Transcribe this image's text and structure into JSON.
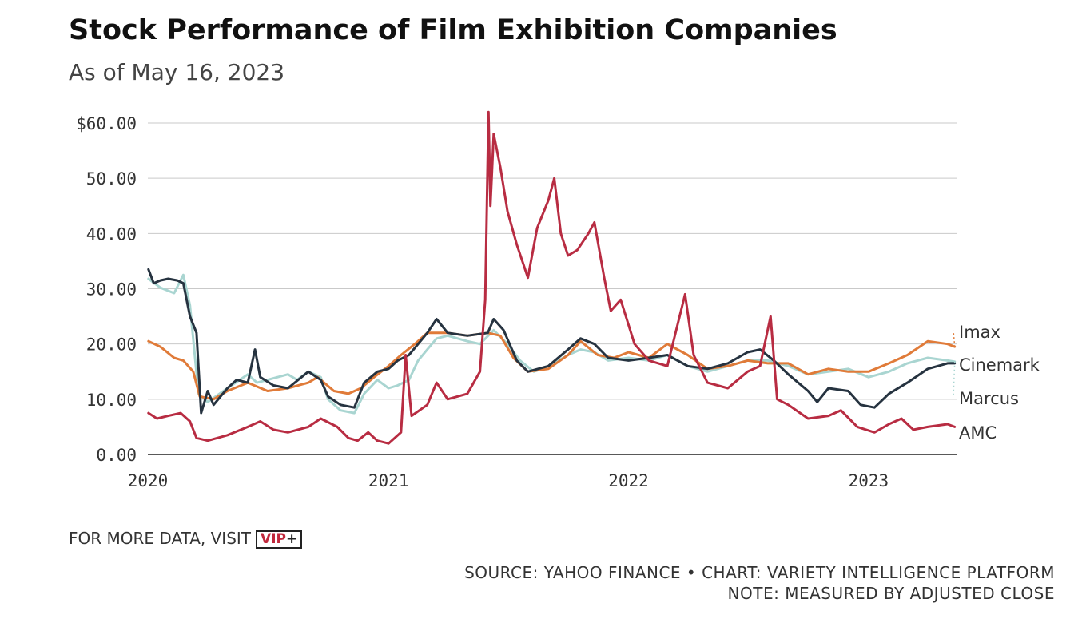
{
  "title": "Stock Performance of Film Exhibition Companies",
  "subtitle": "As of May 16, 2023",
  "footer": {
    "more_data": "FOR MORE DATA, VISIT",
    "vip_label": "VIP",
    "vip_plus": "+",
    "source": "SOURCE: YAHOO FINANCE • CHART: VARIETY INTELLIGENCE PLATFORM",
    "note": "NOTE: MEASURED BY ADJUSTED CLOSE"
  },
  "chart_data": {
    "type": "line",
    "title": "Stock Performance of Film Exhibition Companies",
    "subtitle": "As of May 16, 2023",
    "x_range": [
      "2020-01-01",
      "2023-05-16"
    ],
    "ylim": [
      0,
      60
    ],
    "y_ticks": [
      0,
      10,
      20,
      30,
      40,
      50,
      60
    ],
    "y_tick_labels": [
      "0.00",
      "10.00",
      "20.00",
      "30.00",
      "40.00",
      "50.00",
      "$60.00"
    ],
    "x_ticks": [
      "2020-01-01",
      "2021-01-01",
      "2022-01-01",
      "2023-01-01"
    ],
    "x_tick_labels": [
      "2020",
      "2021",
      "2022",
      "2023"
    ],
    "grid": true,
    "legend": "end-of-line labels",
    "series": [
      {
        "name": "Marcus",
        "color": "#a9d5d1",
        "points": [
          [
            "2020-01-02",
            31.8
          ],
          [
            "2020-01-20",
            30.2
          ],
          [
            "2020-02-10",
            29.2
          ],
          [
            "2020-02-24",
            32.5
          ],
          [
            "2020-03-05",
            27
          ],
          [
            "2020-03-18",
            11
          ],
          [
            "2020-04-01",
            9.5
          ],
          [
            "2020-05-01",
            12
          ],
          [
            "2020-06-01",
            14.5
          ],
          [
            "2020-06-15",
            13
          ],
          [
            "2020-07-01",
            13.5
          ],
          [
            "2020-08-01",
            14.5
          ],
          [
            "2020-08-15",
            13.5
          ],
          [
            "2020-09-01",
            15
          ],
          [
            "2020-09-20",
            14
          ],
          [
            "2020-10-01",
            10
          ],
          [
            "2020-10-20",
            8
          ],
          [
            "2020-11-10",
            7.5
          ],
          [
            "2020-11-25",
            11
          ],
          [
            "2020-12-15",
            13.5
          ],
          [
            "2021-01-01",
            12
          ],
          [
            "2021-01-15",
            12.5
          ],
          [
            "2021-02-01",
            13.5
          ],
          [
            "2021-02-15",
            17
          ],
          [
            "2021-03-01",
            19
          ],
          [
            "2021-03-15",
            21
          ],
          [
            "2021-04-01",
            21.5
          ],
          [
            "2021-05-01",
            20.5
          ],
          [
            "2021-05-20",
            20
          ],
          [
            "2021-06-10",
            22.5
          ],
          [
            "2021-07-01",
            20
          ],
          [
            "2021-07-20",
            17
          ],
          [
            "2021-08-10",
            15
          ],
          [
            "2021-09-01",
            16
          ],
          [
            "2021-10-01",
            18
          ],
          [
            "2021-10-20",
            19
          ],
          [
            "2021-11-10",
            18.5
          ],
          [
            "2021-12-01",
            17
          ],
          [
            "2022-01-01",
            17.5
          ],
          [
            "2022-02-01",
            17
          ],
          [
            "2022-03-01",
            18
          ],
          [
            "2022-04-01",
            16
          ],
          [
            "2022-05-01",
            15
          ],
          [
            "2022-06-01",
            16
          ],
          [
            "2022-07-01",
            17
          ],
          [
            "2022-08-01",
            17
          ],
          [
            "2022-09-01",
            16
          ],
          [
            "2022-10-01",
            14.5
          ],
          [
            "2022-11-01",
            15
          ],
          [
            "2022-12-01",
            15.5
          ],
          [
            "2023-01-01",
            14
          ],
          [
            "2023-02-01",
            15
          ],
          [
            "2023-03-01",
            16.5
          ],
          [
            "2023-04-01",
            17.5
          ],
          [
            "2023-05-01",
            17
          ],
          [
            "2023-05-12",
            16.8
          ]
        ]
      },
      {
        "name": "Imax",
        "color": "#e07b39",
        "points": [
          [
            "2020-01-02",
            20.5
          ],
          [
            "2020-01-20",
            19.5
          ],
          [
            "2020-02-10",
            17.5
          ],
          [
            "2020-02-24",
            17
          ],
          [
            "2020-03-10",
            15
          ],
          [
            "2020-03-20",
            10.5
          ],
          [
            "2020-04-10",
            10
          ],
          [
            "2020-05-01",
            11.5
          ],
          [
            "2020-06-01",
            13
          ],
          [
            "2020-07-01",
            11.5
          ],
          [
            "2020-08-01",
            12
          ],
          [
            "2020-09-01",
            13
          ],
          [
            "2020-09-15",
            14
          ],
          [
            "2020-10-10",
            11.5
          ],
          [
            "2020-11-01",
            11
          ],
          [
            "2020-11-20",
            12
          ],
          [
            "2020-12-10",
            14
          ],
          [
            "2021-01-01",
            16
          ],
          [
            "2021-01-20",
            18
          ],
          [
            "2021-02-10",
            20
          ],
          [
            "2021-03-01",
            22
          ],
          [
            "2021-04-01",
            22
          ],
          [
            "2021-05-01",
            21.5
          ],
          [
            "2021-06-01",
            22
          ],
          [
            "2021-06-20",
            21.5
          ],
          [
            "2021-07-10",
            17.5
          ],
          [
            "2021-08-01",
            15
          ],
          [
            "2021-09-01",
            15.5
          ],
          [
            "2021-10-01",
            18
          ],
          [
            "2021-10-20",
            20.5
          ],
          [
            "2021-11-15",
            18
          ],
          [
            "2021-12-10",
            17.5
          ],
          [
            "2022-01-01",
            18.5
          ],
          [
            "2022-02-01",
            17.5
          ],
          [
            "2022-03-01",
            20
          ],
          [
            "2022-04-01",
            18
          ],
          [
            "2022-05-01",
            15.5
          ],
          [
            "2022-06-01",
            16
          ],
          [
            "2022-07-01",
            17
          ],
          [
            "2022-08-01",
            16.5
          ],
          [
            "2022-09-01",
            16.5
          ],
          [
            "2022-10-01",
            14.5
          ],
          [
            "2022-11-01",
            15.5
          ],
          [
            "2022-12-01",
            15
          ],
          [
            "2023-01-01",
            15
          ],
          [
            "2023-02-01",
            16.5
          ],
          [
            "2023-03-01",
            18
          ],
          [
            "2023-04-01",
            20.5
          ],
          [
            "2023-05-01",
            20
          ],
          [
            "2023-05-12",
            19.5
          ]
        ]
      },
      {
        "name": "Cinemark",
        "color": "#263340",
        "points": [
          [
            "2020-01-02",
            33.5
          ],
          [
            "2020-01-10",
            31
          ],
          [
            "2020-01-20",
            31.5
          ],
          [
            "2020-02-01",
            31.8
          ],
          [
            "2020-02-15",
            31.5
          ],
          [
            "2020-02-24",
            31
          ],
          [
            "2020-03-05",
            25
          ],
          [
            "2020-03-15",
            22
          ],
          [
            "2020-03-22",
            7.5
          ],
          [
            "2020-04-01",
            11.5
          ],
          [
            "2020-04-10",
            9
          ],
          [
            "2020-05-01",
            12
          ],
          [
            "2020-05-15",
            13.5
          ],
          [
            "2020-06-01",
            13
          ],
          [
            "2020-06-12",
            19
          ],
          [
            "2020-06-20",
            14
          ],
          [
            "2020-07-10",
            12.5
          ],
          [
            "2020-08-01",
            12
          ],
          [
            "2020-09-01",
            15
          ],
          [
            "2020-09-20",
            13.5
          ],
          [
            "2020-10-01",
            10.5
          ],
          [
            "2020-10-20",
            9
          ],
          [
            "2020-11-10",
            8.5
          ],
          [
            "2020-11-25",
            13
          ],
          [
            "2020-12-15",
            15
          ],
          [
            "2021-01-01",
            15.5
          ],
          [
            "2021-01-15",
            17
          ],
          [
            "2021-02-01",
            18
          ],
          [
            "2021-02-15",
            20
          ],
          [
            "2021-03-01",
            22
          ],
          [
            "2021-03-15",
            24.5
          ],
          [
            "2021-04-01",
            22
          ],
          [
            "2021-05-01",
            21.5
          ],
          [
            "2021-06-01",
            22
          ],
          [
            "2021-06-10",
            24.5
          ],
          [
            "2021-06-25",
            22.5
          ],
          [
            "2021-07-15",
            17
          ],
          [
            "2021-08-01",
            15
          ],
          [
            "2021-09-01",
            16
          ],
          [
            "2021-10-01",
            19
          ],
          [
            "2021-10-20",
            21
          ],
          [
            "2021-11-10",
            20
          ],
          [
            "2021-12-01",
            17.5
          ],
          [
            "2022-01-01",
            17
          ],
          [
            "2022-02-01",
            17.5
          ],
          [
            "2022-03-01",
            18
          ],
          [
            "2022-04-01",
            16
          ],
          [
            "2022-05-01",
            15.5
          ],
          [
            "2022-06-01",
            16.5
          ],
          [
            "2022-07-01",
            18.5
          ],
          [
            "2022-07-20",
            19
          ],
          [
            "2022-08-10",
            17
          ],
          [
            "2022-09-01",
            14.5
          ],
          [
            "2022-10-01",
            11.5
          ],
          [
            "2022-10-15",
            9.5
          ],
          [
            "2022-11-01",
            12
          ],
          [
            "2022-12-01",
            11.5
          ],
          [
            "2022-12-20",
            9
          ],
          [
            "2023-01-10",
            8.5
          ],
          [
            "2023-02-01",
            11
          ],
          [
            "2023-03-01",
            13
          ],
          [
            "2023-04-01",
            15.5
          ],
          [
            "2023-05-01",
            16.5
          ],
          [
            "2023-05-12",
            16.5
          ]
        ]
      },
      {
        "name": "AMC",
        "color": "#b82c42",
        "points": [
          [
            "2020-01-02",
            7.5
          ],
          [
            "2020-01-15",
            6.5
          ],
          [
            "2020-02-01",
            7
          ],
          [
            "2020-02-20",
            7.5
          ],
          [
            "2020-03-05",
            6
          ],
          [
            "2020-03-15",
            3
          ],
          [
            "2020-04-01",
            2.5
          ],
          [
            "2020-05-01",
            3.5
          ],
          [
            "2020-06-01",
            5
          ],
          [
            "2020-06-20",
            6
          ],
          [
            "2020-07-10",
            4.5
          ],
          [
            "2020-08-01",
            4
          ],
          [
            "2020-09-01",
            5
          ],
          [
            "2020-09-20",
            6.5
          ],
          [
            "2020-10-15",
            5
          ],
          [
            "2020-11-01",
            3
          ],
          [
            "2020-11-15",
            2.5
          ],
          [
            "2020-12-01",
            4
          ],
          [
            "2020-12-15",
            2.5
          ],
          [
            "2021-01-01",
            2
          ],
          [
            "2021-01-20",
            4
          ],
          [
            "2021-01-27",
            18
          ],
          [
            "2021-02-05",
            7
          ],
          [
            "2021-03-01",
            9
          ],
          [
            "2021-03-15",
            13
          ],
          [
            "2021-04-01",
            10
          ],
          [
            "2021-05-01",
            11
          ],
          [
            "2021-05-20",
            15
          ],
          [
            "2021-05-28",
            28
          ],
          [
            "2021-06-02",
            62
          ],
          [
            "2021-06-05",
            45
          ],
          [
            "2021-06-10",
            58
          ],
          [
            "2021-06-20",
            52
          ],
          [
            "2021-07-01",
            44
          ],
          [
            "2021-07-15",
            38
          ],
          [
            "2021-08-01",
            32
          ],
          [
            "2021-08-15",
            41
          ],
          [
            "2021-09-01",
            46
          ],
          [
            "2021-09-10",
            50
          ],
          [
            "2021-09-20",
            40
          ],
          [
            "2021-10-01",
            36
          ],
          [
            "2021-10-15",
            37
          ],
          [
            "2021-11-01",
            40
          ],
          [
            "2021-11-10",
            42
          ],
          [
            "2021-11-25",
            32
          ],
          [
            "2021-12-05",
            26
          ],
          [
            "2021-12-20",
            28
          ],
          [
            "2022-01-10",
            20
          ],
          [
            "2022-02-01",
            17
          ],
          [
            "2022-03-01",
            16
          ],
          [
            "2022-03-28",
            29
          ],
          [
            "2022-04-10",
            18
          ],
          [
            "2022-05-01",
            13
          ],
          [
            "2022-06-01",
            12
          ],
          [
            "2022-07-01",
            15
          ],
          [
            "2022-07-20",
            16
          ],
          [
            "2022-08-05",
            25
          ],
          [
            "2022-08-15",
            10
          ],
          [
            "2022-09-01",
            9
          ],
          [
            "2022-10-01",
            6.5
          ],
          [
            "2022-11-01",
            7
          ],
          [
            "2022-11-20",
            8
          ],
          [
            "2022-12-15",
            5
          ],
          [
            "2023-01-10",
            4
          ],
          [
            "2023-02-01",
            5.5
          ],
          [
            "2023-02-20",
            6.5
          ],
          [
            "2023-03-10",
            4.5
          ],
          [
            "2023-04-01",
            5
          ],
          [
            "2023-05-01",
            5.5
          ],
          [
            "2023-05-12",
            5
          ]
        ]
      }
    ],
    "end_labels": [
      {
        "series": "Imax",
        "text": "Imax",
        "end_value": 23
      },
      {
        "series": "Cinemark",
        "text": "Cinemark",
        "end_value": 17
      },
      {
        "series": "Marcus",
        "text": "Marcus",
        "end_value": 11
      },
      {
        "series": "AMC",
        "text": "AMC",
        "end_value": 5
      }
    ]
  }
}
